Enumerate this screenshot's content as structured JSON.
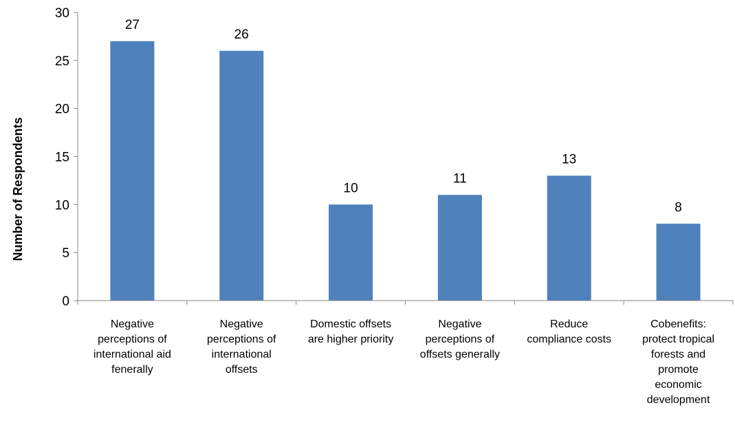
{
  "chart_data": {
    "type": "bar",
    "title": "",
    "xlabel": "",
    "ylabel": "Number of Respondents",
    "ylim": [
      0,
      30
    ],
    "yticks": [
      0,
      5,
      10,
      15,
      20,
      25,
      30
    ],
    "grid": false,
    "legend": "none",
    "categories": [
      "Negative perceptions of international aid fenerally",
      "Negative perceptions of international offsets",
      "Domestic offsets are higher priority",
      "Negative perceptions of offsets generally",
      "Reduce compliance costs",
      "Cobenefits: protect tropical forests and promote economic development"
    ],
    "category_lines": [
      [
        "Negative",
        "perceptions of",
        "international aid",
        "fenerally"
      ],
      [
        "Negative",
        "perceptions of",
        "international",
        "offsets"
      ],
      [
        "Domestic offsets",
        "are higher priority"
      ],
      [
        "Negative",
        "perceptions of",
        "offsets generally"
      ],
      [
        "Reduce",
        "compliance costs"
      ],
      [
        "Cobenefits:",
        "protect tropical",
        "forests and",
        "promote",
        "economic",
        "development"
      ]
    ],
    "values": [
      27,
      26,
      10,
      11,
      13,
      8
    ],
    "data_labels": [
      "27",
      "26",
      "10",
      "11",
      "13",
      "8"
    ],
    "bar_color": "#4f81bd",
    "axis_color": "#868686"
  }
}
